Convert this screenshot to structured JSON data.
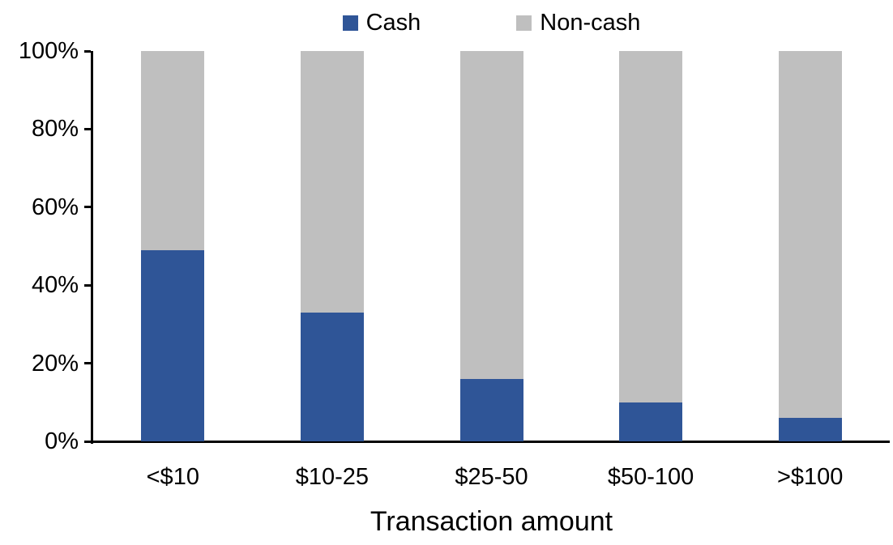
{
  "chart_data": {
    "type": "bar",
    "stacked": true,
    "percent_stacked": true,
    "title": "",
    "xlabel": "Transaction amount",
    "ylabel": "",
    "categories": [
      "<$10",
      "$10-25",
      "$25-50",
      "$50-100",
      ">$100"
    ],
    "series": [
      {
        "name": "Cash",
        "color": "#2F5597",
        "values": [
          49,
          33,
          16,
          10,
          6
        ]
      },
      {
        "name": "Non-cash",
        "color": "#BFBFBF",
        "values": [
          51,
          67,
          84,
          90,
          94
        ]
      }
    ],
    "ylim": [
      0,
      100
    ],
    "y_ticks": [
      "0%",
      "20%",
      "40%",
      "60%",
      "80%",
      "100%"
    ],
    "legend_position": "top",
    "grid": false,
    "axis_color": "#000000",
    "background_color": "#FFFFFF"
  }
}
